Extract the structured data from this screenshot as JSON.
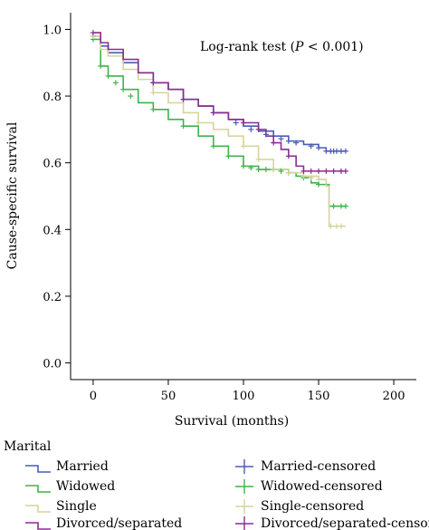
{
  "chart_data": {
    "type": "line",
    "title": "",
    "annotation_prefix": "Log-rank test (",
    "annotation_p": "P",
    "annotation_suffix": " < 0.001)",
    "xlabel": "Survival (months)",
    "ylabel": "Cause-specific survival",
    "xlim": [
      -15,
      215
    ],
    "ylim": [
      -0.05,
      1.05
    ],
    "xticks": [
      0,
      50,
      100,
      150,
      200
    ],
    "yticks": [
      0.0,
      0.2,
      0.4,
      0.6,
      0.8,
      1.0
    ],
    "xtick_labels": [
      "0",
      "50",
      "100",
      "150",
      "200"
    ],
    "ytick_labels": [
      "0.0",
      "0.2",
      "0.4",
      "0.6",
      "0.8",
      "1.0"
    ],
    "grid": false,
    "legend_title": "Marital",
    "legend_position": "bottom",
    "series": [
      {
        "name": "Married",
        "color": "#4a5bb8",
        "x": [
          0,
          5,
          10,
          20,
          30,
          40,
          50,
          60,
          70,
          80,
          90,
          100,
          110,
          120,
          130,
          140,
          150,
          155,
          168
        ],
        "y": [
          0.98,
          0.95,
          0.93,
          0.9,
          0.87,
          0.84,
          0.82,
          0.79,
          0.77,
          0.75,
          0.73,
          0.71,
          0.695,
          0.68,
          0.665,
          0.655,
          0.645,
          0.635,
          0.635
        ]
      },
      {
        "name": "Widowed",
        "color": "#3cb54a",
        "x": [
          0,
          5,
          10,
          20,
          30,
          40,
          50,
          60,
          70,
          80,
          90,
          100,
          110,
          120,
          130,
          135,
          140,
          145,
          150,
          155,
          157,
          160,
          168
        ],
        "y": [
          0.97,
          0.89,
          0.86,
          0.82,
          0.78,
          0.76,
          0.73,
          0.71,
          0.68,
          0.65,
          0.62,
          0.59,
          0.58,
          0.58,
          0.57,
          0.56,
          0.555,
          0.54,
          0.535,
          0.535,
          0.47,
          0.47,
          0.47
        ]
      },
      {
        "name": "Single",
        "color": "#d6d49a",
        "x": [
          0,
          5,
          10,
          20,
          30,
          40,
          50,
          60,
          70,
          80,
          90,
          100,
          110,
          120,
          130,
          140,
          150,
          155,
          157,
          160,
          168
        ],
        "y": [
          0.98,
          0.94,
          0.92,
          0.88,
          0.85,
          0.81,
          0.78,
          0.75,
          0.72,
          0.7,
          0.68,
          0.65,
          0.61,
          0.58,
          0.57,
          0.56,
          0.55,
          0.53,
          0.41,
          0.41,
          0.41
        ]
      },
      {
        "name": "Divorced/separated",
        "color": "#8b2c8f",
        "x": [
          0,
          5,
          10,
          20,
          30,
          40,
          50,
          60,
          70,
          80,
          90,
          100,
          110,
          115,
          120,
          125,
          130,
          135,
          140,
          150,
          160,
          168
        ],
        "y": [
          0.99,
          0.96,
          0.94,
          0.91,
          0.87,
          0.84,
          0.82,
          0.79,
          0.77,
          0.75,
          0.73,
          0.72,
          0.7,
          0.68,
          0.66,
          0.64,
          0.62,
          0.59,
          0.575,
          0.575,
          0.575,
          0.575
        ]
      }
    ],
    "censored": [
      {
        "name": "Married-censored",
        "color": "#4a5bb8",
        "x": [
          0,
          40,
          60,
          80,
          95,
          105,
          115,
          125,
          130,
          135,
          145,
          150,
          155,
          158,
          160,
          162,
          165,
          168
        ],
        "y": [
          0.98,
          0.84,
          0.79,
          0.75,
          0.72,
          0.7,
          0.685,
          0.672,
          0.665,
          0.66,
          0.65,
          0.645,
          0.635,
          0.635,
          0.635,
          0.635,
          0.635,
          0.635
        ]
      },
      {
        "name": "Widowed-censored",
        "color": "#3cb54a",
        "x": [
          0,
          5,
          10,
          15,
          20,
          25,
          40,
          60,
          80,
          90,
          100,
          105,
          110,
          115,
          120,
          125,
          130,
          140,
          150,
          160,
          165,
          168
        ],
        "y": [
          0.97,
          0.89,
          0.86,
          0.84,
          0.82,
          0.8,
          0.76,
          0.71,
          0.65,
          0.62,
          0.59,
          0.585,
          0.58,
          0.58,
          0.58,
          0.575,
          0.57,
          0.555,
          0.535,
          0.47,
          0.47,
          0.47
        ]
      },
      {
        "name": "Single-censored",
        "color": "#d6d49a",
        "x": [
          0,
          40,
          70,
          100,
          110,
          120,
          130,
          140,
          145,
          150,
          158,
          162,
          165
        ],
        "y": [
          0.98,
          0.81,
          0.72,
          0.65,
          0.61,
          0.58,
          0.57,
          0.56,
          0.555,
          0.55,
          0.41,
          0.41,
          0.41
        ]
      },
      {
        "name": "Divorced/separated-censored",
        "color": "#8b2c8f",
        "x": [
          0,
          40,
          60,
          80,
          100,
          110,
          120,
          130,
          140,
          145,
          150,
          155,
          160,
          165,
          168
        ],
        "y": [
          0.99,
          0.84,
          0.79,
          0.75,
          0.72,
          0.7,
          0.66,
          0.62,
          0.575,
          0.575,
          0.575,
          0.575,
          0.575,
          0.575,
          0.575
        ]
      }
    ]
  }
}
